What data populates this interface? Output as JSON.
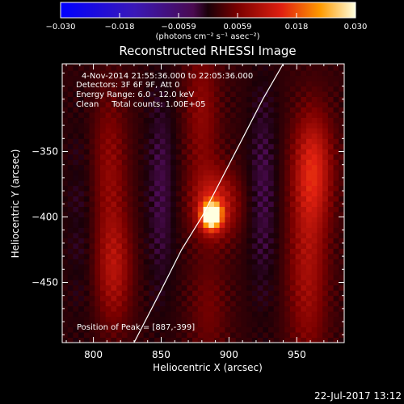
{
  "chart_data": {
    "type": "heatmap",
    "title": "Reconstructed RHESSI Image",
    "xlabel": "Heliocentric X (arcsec)",
    "ylabel": "Heliocentric Y (arcsec)",
    "xlim": [
      777,
      985
    ],
    "ylim": [
      -496,
      -283
    ],
    "x_ticks": [
      800,
      850,
      900,
      950
    ],
    "y_ticks": [
      -350,
      -400,
      -450
    ],
    "colorbar": {
      "ticks": [
        "-0.030",
        "-0.018",
        "-0.0059",
        "0.0059",
        "0.018",
        "0.030"
      ],
      "unit_label": "(photons cm⁻² s⁻¹ asec⁻²)",
      "range": [
        -0.03,
        0.03
      ]
    },
    "annotations": [
      "4-Nov-2014 21:55:36.000 to 22:05:36.000",
      "Detectors: 3F 6F 9F, Att 0",
      "Energy Range: 6.0 - 12.0 keV",
      "Clean     Total counts: 1.00E+05"
    ],
    "peak_label": "Position of Peak = [887,-399]",
    "peak": {
      "x": 887,
      "y": -399,
      "value": 0.03
    },
    "limb_curve": [
      [
        830,
        -496
      ],
      [
        848,
        -460
      ],
      [
        865,
        -425
      ],
      [
        880,
        -400
      ],
      [
        895,
        -370
      ],
      [
        910,
        -340
      ],
      [
        925,
        -310
      ],
      [
        940,
        -283
      ]
    ],
    "blobs": [
      {
        "x": 887,
        "y": -399,
        "sx": 5,
        "sy": 7,
        "value": 0.03
      },
      {
        "x": 890,
        "y": -390,
        "sx": 12,
        "sy": 18,
        "value": 0.012
      },
      {
        "x": 962,
        "y": -362,
        "sx": 10,
        "sy": 30,
        "value": 0.012
      },
      {
        "x": 958,
        "y": -440,
        "sx": 10,
        "sy": 50,
        "value": 0.008
      },
      {
        "x": 815,
        "y": -440,
        "sx": 9,
        "sy": 30,
        "value": 0.009
      },
      {
        "x": 812,
        "y": -360,
        "sx": 9,
        "sy": 40,
        "value": 0.006
      },
      {
        "x": 880,
        "y": -320,
        "sx": 9,
        "sy": 40,
        "value": 0.006
      },
      {
        "x": 885,
        "y": -470,
        "sx": 10,
        "sy": 30,
        "value": 0.004
      },
      {
        "x": 850,
        "y": -380,
        "sx": 8,
        "sy": 60,
        "value": -0.004
      },
      {
        "x": 925,
        "y": -380,
        "sx": 8,
        "sy": 60,
        "value": -0.004
      },
      {
        "x": 790,
        "y": -400,
        "sx": 8,
        "sy": 60,
        "value": -0.002
      }
    ],
    "background": 0.0015
  },
  "footer_date": "22-Jul-2017 13:12"
}
